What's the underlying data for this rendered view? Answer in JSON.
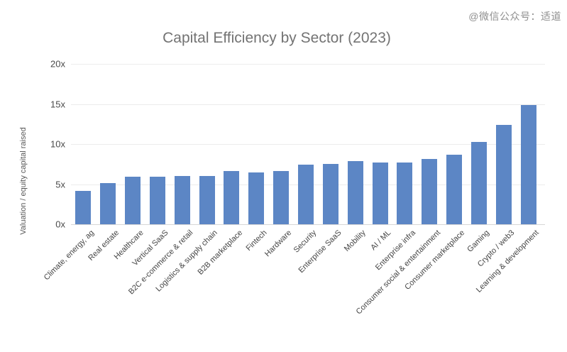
{
  "watermark": "@微信公众号：适道",
  "chart_data": {
    "type": "bar",
    "title": "Capital Efficiency by Sector (2023)",
    "ylabel": "Valuation / equity capital raised",
    "xlabel": "",
    "ylim": [
      0,
      20
    ],
    "yticks": [
      {
        "value": 0,
        "label": "0x"
      },
      {
        "value": 5,
        "label": "5x"
      },
      {
        "value": 10,
        "label": "10x"
      },
      {
        "value": 15,
        "label": "15x"
      },
      {
        "value": 20,
        "label": "20x"
      }
    ],
    "grid": true,
    "legend_position": "none",
    "bar_color": "#5c86c5",
    "categories": [
      "Climate, energy, ag",
      "Real estate",
      "Healthcare",
      "Vertical SaaS",
      "B2C e-commerce & retail",
      "Logistics & supply chain",
      "B2B marketplace",
      "Fintech",
      "Hardware",
      "Security",
      "Enterprise SaaS",
      "Mobility",
      "AI / ML",
      "Enterprise infra",
      "Consumer social & entertainment",
      "Consumer marketplace",
      "Gaming",
      "Crypto / web3",
      "Learning & development"
    ],
    "values": [
      4.2,
      5.1,
      5.9,
      5.9,
      6.0,
      6.0,
      6.6,
      6.5,
      6.6,
      7.4,
      7.5,
      7.9,
      7.7,
      7.7,
      8.1,
      8.7,
      10.3,
      12.4,
      14.9
    ]
  }
}
